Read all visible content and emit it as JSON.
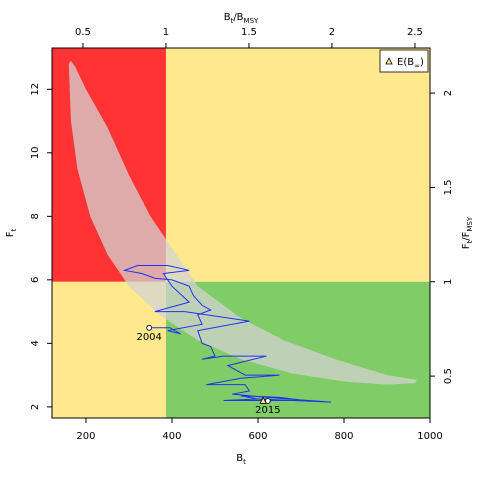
{
  "chart_data": {
    "type": "kobe",
    "xlabel": [
      {
        "text": "B"
      },
      {
        "text": "t",
        "sub": true
      }
    ],
    "ylabel": [
      {
        "text": "F"
      },
      {
        "text": "t",
        "sub": true
      }
    ],
    "x2label": [
      {
        "text": "B"
      },
      {
        "text": "t",
        "sub": true
      },
      {
        "text": "/B"
      },
      {
        "text": "MSY",
        "sub": true
      }
    ],
    "y2label": [
      {
        "text": "F"
      },
      {
        "text": "t",
        "sub": true
      },
      {
        "text": "/F"
      },
      {
        "text": "MSY",
        "sub": true
      }
    ],
    "xlim": [
      121,
      1000
    ],
    "xticks": [
      200,
      400,
      600,
      800,
      1000
    ],
    "ylim": [
      1.65,
      13.3
    ],
    "yticks": [
      2,
      4,
      6,
      8,
      10,
      12
    ],
    "x2lim": [
      0.3135,
      2.5907
    ],
    "x2ticks": [
      0.5,
      1,
      1.5,
      2,
      2.5
    ],
    "y2lim": [
      0.278,
      2.239
    ],
    "y2ticks": [
      0.5,
      1,
      1.5,
      2
    ],
    "kobe_reference": {
      "x2": 1,
      "y2": 1
    },
    "quadrant_colors": {
      "red": "#ff3333",
      "yellow": "#ffe98c",
      "green": "#80cc66"
    },
    "region": {
      "color": "#d3d3d3",
      "x": [
        160,
        165,
        180,
        210,
        250,
        300,
        370,
        460,
        560,
        680,
        800,
        900,
        965,
        970,
        900,
        780,
        660,
        560,
        460,
        400,
        350,
        300,
        250,
        200,
        175,
        165
      ],
      "y": [
        12.8,
        11,
        9.5,
        8,
        6.8,
        5.8,
        4.9,
        4.1,
        3.5,
        3.05,
        2.8,
        2.7,
        2.75,
        2.85,
        3.0,
        3.5,
        4.1,
        4.8,
        5.8,
        7.0,
        8.0,
        9.3,
        10.8,
        12.0,
        12.7,
        12.9
      ]
    },
    "trajectory": {
      "color": "#2233ee",
      "x": [
        347,
        395,
        420,
        390,
        470,
        460,
        490,
        470,
        450,
        440,
        400,
        360,
        330,
        290,
        320,
        390,
        440,
        380,
        400,
        440,
        360,
        430,
        580,
        460,
        470,
        490,
        500,
        470,
        520,
        620,
        530,
        570,
        650,
        560,
        480,
        570,
        580,
        540,
        620,
        770,
        600,
        520,
        710,
        650,
        560,
        623
      ],
      "y": [
        4.49,
        4.49,
        4.3,
        4.4,
        4.6,
        4.9,
        5.05,
        5.2,
        5.5,
        5.8,
        6.0,
        6.05,
        6.2,
        6.3,
        6.45,
        6.45,
        6.3,
        6.2,
        5.8,
        5.3,
        5.0,
        5.0,
        4.7,
        4.4,
        4.0,
        3.9,
        3.6,
        3.5,
        3.6,
        3.6,
        3.3,
        3.0,
        3.0,
        2.9,
        2.7,
        2.7,
        2.5,
        2.4,
        2.3,
        2.15,
        2.25,
        2.2,
        2.2,
        2.3,
        2.35,
        2.19
      ]
    },
    "annotations": [
      {
        "text": "2004",
        "x": 347,
        "y": 4.49
      },
      {
        "text": "2015",
        "x": 623,
        "y": 2.19
      }
    ],
    "equilibrium": {
      "x": 612,
      "y": 2.19,
      "color": "#ffe98c"
    },
    "legend": {
      "position": "top-right",
      "label": [
        {
          "text": "E(B"
        },
        {
          "text": "∞",
          "sub": true
        },
        {
          "text": ")"
        }
      ]
    }
  }
}
